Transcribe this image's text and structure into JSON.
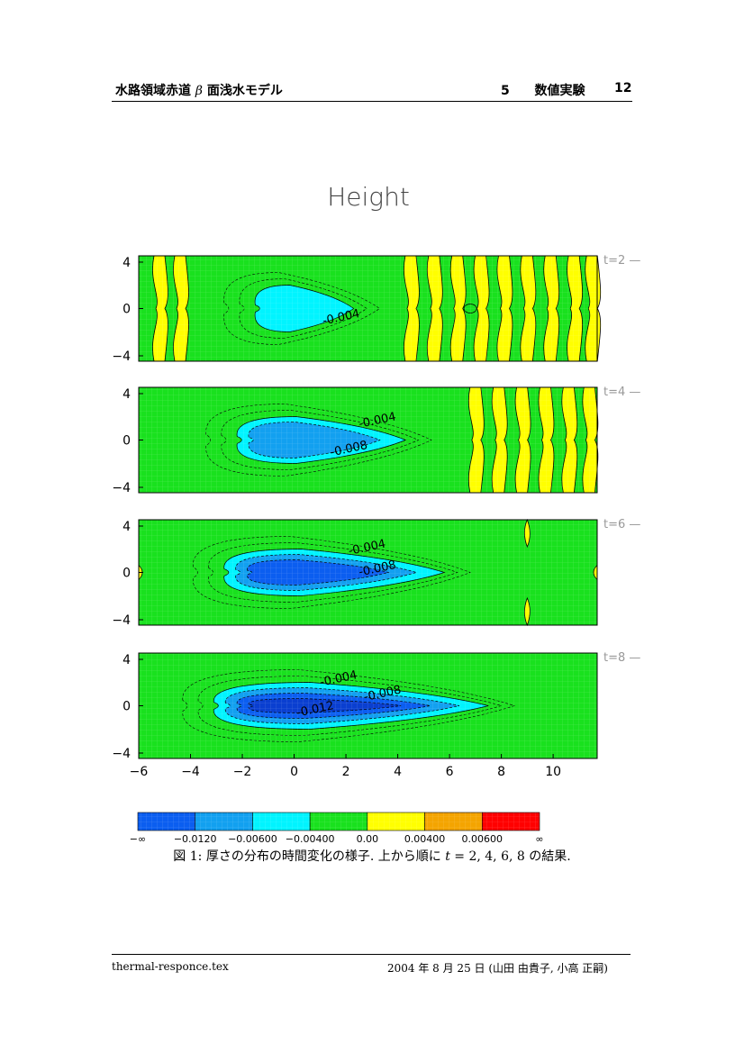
{
  "header": {
    "title_pre": "水路領域赤道",
    "title_beta": "β",
    "title_post": "面浅水モデル",
    "section_number": "5",
    "section_title": "数値実験",
    "page_number": "12"
  },
  "figure": {
    "title": "Height",
    "panels": [
      {
        "label": "t=2",
        "contour_labels": [
          "-0.004"
        ]
      },
      {
        "label": "t=4",
        "contour_labels": [
          "-0.004",
          "-0.008"
        ]
      },
      {
        "label": "t=6",
        "contour_labels": [
          "-0.004",
          "-0.008"
        ]
      },
      {
        "label": "t=8",
        "contour_labels": [
          "-0.004",
          "-0.008",
          "-0.012"
        ]
      }
    ],
    "x_ticks": [
      "−6",
      "−4",
      "−2",
      "0",
      "2",
      "4",
      "6",
      "8",
      "10"
    ],
    "y_ticks": [
      "4",
      "0",
      "−4"
    ],
    "colorbar": {
      "colors": [
        "#0b5ef0",
        "#12a0f0",
        "#00f4ff",
        "#19e11e",
        "#ffff00",
        "#f4a400",
        "#ff0000"
      ],
      "tick_labels": [
        "−∞",
        "−0.0120",
        "−0.00600",
        "−0.00400",
        "0.00",
        "0.00400",
        "0.00600",
        "∞"
      ]
    }
  },
  "caption": {
    "prefix": "図 1: 厚さの分布の時間変化の様子. 上から順に",
    "var": "t",
    "equation": " = 2, 4, 6, 8",
    "suffix": " の結果."
  },
  "footer": {
    "filename": "thermal-responce.tex",
    "date_authors": "2004 年 8 月 25 日 (山田 由貴子, 小高 正嗣)"
  }
}
